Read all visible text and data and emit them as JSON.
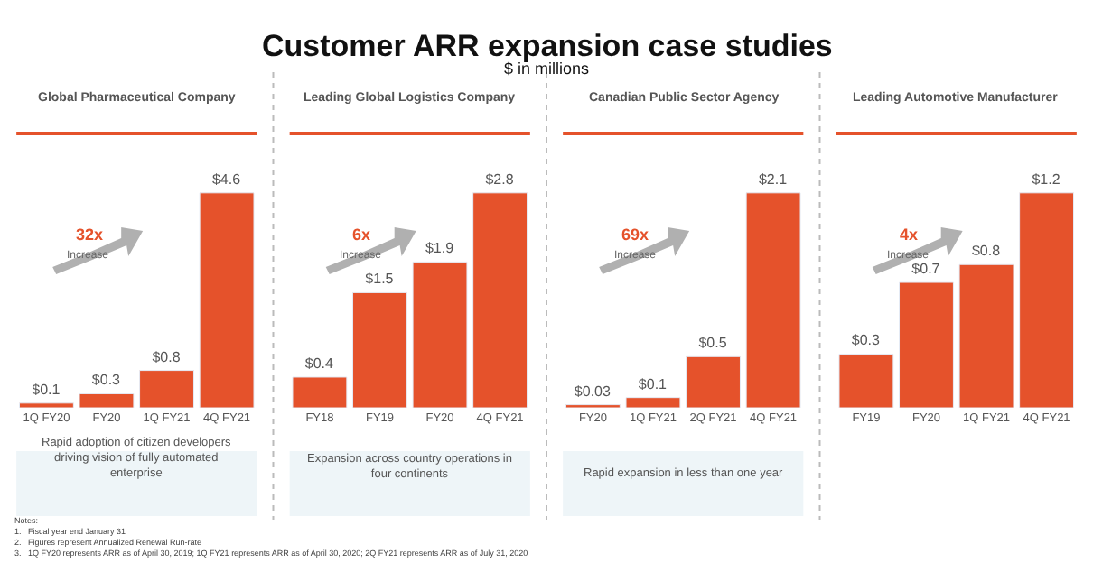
{
  "chart_data": [
    {
      "type": "bar",
      "title": "Global Pharmaceutical Company",
      "categories": [
        "1Q FY20",
        "FY20",
        "1Q FY21",
        "4Q FY21"
      ],
      "values": [
        0.1,
        0.3,
        0.8,
        4.6
      ],
      "value_labels": [
        "$0.1",
        "$0.3",
        "$0.8",
        "$4.6"
      ],
      "color": "#e5522b",
      "tick_labels": "x",
      "annotations": [
        "32x",
        "Increase",
        "Rapid adoption of citizen developers driving vision of fully automated enterprise",
        "Customer ARR expansion case studies",
        "$ in millions",
        "Notes:",
        "1.   Fiscal year end January 31",
        "2.   Figures represent Annualized Renewal Run-rate",
        "3.   1Q FY20 represents ARR as of April 30, 2019; 1Q FY21 represents ARR as of April 30, 2020; 2Q FY21 represents ARR as of July 31, 2020"
      ]
    },
    {
      "type": "bar",
      "title": "Leading Global Logistics Company",
      "categories": [
        "FY18",
        "FY19",
        "FY20",
        "4Q FY21"
      ],
      "values": [
        0.4,
        1.5,
        1.9,
        2.8
      ],
      "value_labels": [
        "$0.4",
        "$1.5",
        "$1.9",
        "$2.8"
      ],
      "color": "#e5522b",
      "tick_labels": "x",
      "annotations": [
        "6x",
        "Increase",
        "Expansion across country operations in four continents"
      ]
    },
    {
      "type": "bar",
      "title": "Canadian Public Sector Agency",
      "categories": [
        "FY20",
        "1Q FY21",
        "2Q FY21",
        "4Q FY21"
      ],
      "values": [
        0.03,
        0.1,
        0.5,
        2.1
      ],
      "value_labels": [
        "$0.03",
        "$0.1",
        "$0.5",
        "$2.1"
      ],
      "color": "#e5522b",
      "tick_labels": "x",
      "annotations": [
        "69x",
        "Increase",
        "Rapid expansion in less than one year"
      ]
    },
    {
      "type": "bar",
      "title": "Leading Automotive Manufacturer",
      "categories": [
        "FY19",
        "FY20",
        "1Q FY21",
        "4Q FY21"
      ],
      "values": [
        0.3,
        0.7,
        0.8,
        1.2
      ],
      "value_labels": [
        "$0.3",
        "$0.7",
        "$0.8",
        "$1.2"
      ],
      "color": "#e5522b",
      "tick_labels": "x",
      "annotations": [
        "4x",
        "Increase"
      ]
    }
  ]
}
